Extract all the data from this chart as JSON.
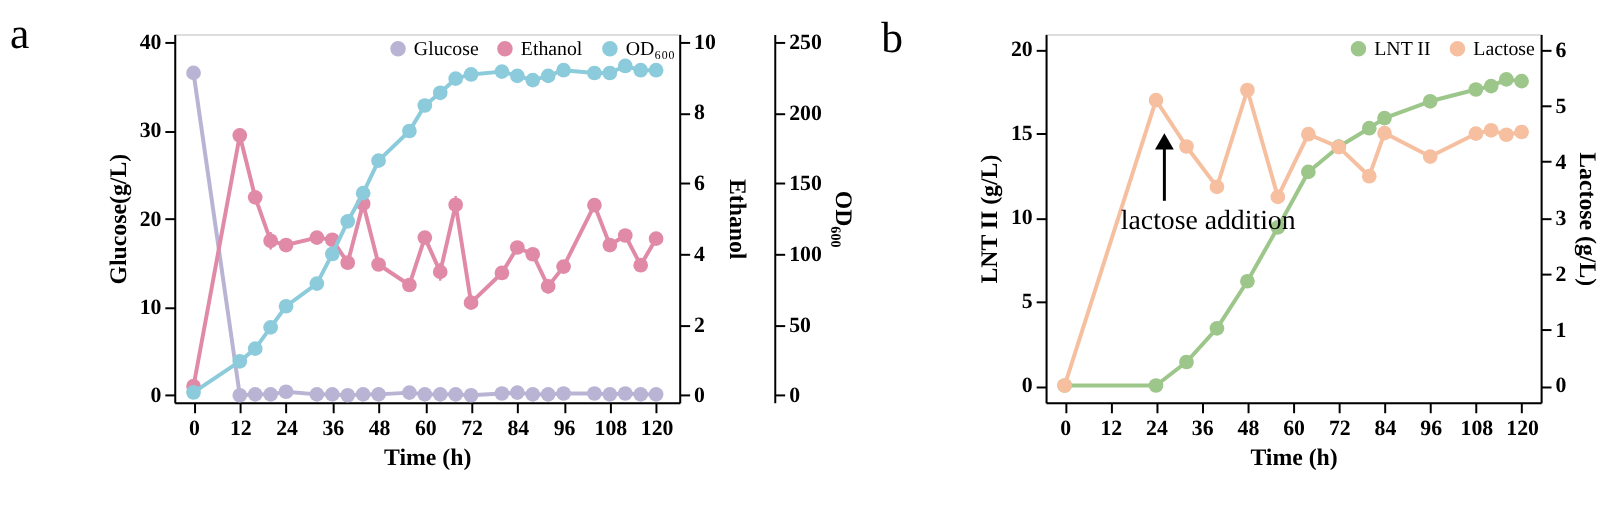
{
  "chart_data": [
    {
      "type": "line",
      "title": "a",
      "xlabel": "Time (h)",
      "ylabel": "Glucose(g/L)",
      "y2label": "Ethanol",
      "y3label": "OD₆₀₀",
      "xlim": [
        -5,
        126
      ],
      "xticks": [
        0,
        12,
        24,
        36,
        48,
        60,
        72,
        84,
        96,
        108,
        120
      ],
      "ylim": [
        -0.8,
        40.9
      ],
      "yticks": [
        0,
        10,
        20,
        30,
        40
      ],
      "y2lim": [
        -0.2,
        10.22
      ],
      "y2ticks": [
        0,
        2,
        4,
        6,
        8,
        10
      ],
      "y3lim": [
        -5,
        255.6
      ],
      "y3ticks": [
        0,
        50,
        100,
        150,
        200,
        250
      ],
      "legend": "top right",
      "marker": "circle",
      "line_style": "solid",
      "grid": false,
      "series": [
        {
          "name": "Glucose",
          "color": "#b9b3d4",
          "x": [
            0,
            12,
            16,
            20,
            24,
            32,
            36,
            40,
            44,
            48,
            56,
            60,
            64,
            68,
            72,
            80,
            84,
            88,
            92,
            96,
            104,
            108,
            112,
            116,
            120
          ],
          "values": [
            36.5,
            0,
            0.1,
            0.1,
            0.4,
            0.1,
            0.1,
            0,
            0.1,
            0.1,
            0.3,
            0.1,
            0.1,
            0.1,
            0,
            0.2,
            0.3,
            0.1,
            0.1,
            0.2,
            0.2,
            0.1,
            0.2,
            0.1,
            0.1
          ]
        },
        {
          "name": "Ethanol",
          "color": "#e08aa8",
          "axis": "y2",
          "x": [
            0,
            12,
            16,
            20,
            24,
            32,
            36,
            40,
            44,
            48,
            56,
            60,
            64,
            68,
            72,
            80,
            84,
            88,
            92,
            96,
            104,
            108,
            112,
            116,
            120
          ],
          "values": [
            0.26,
            7.35,
            5.6,
            4.37,
            4.25,
            4.46,
            4.4,
            3.75,
            5.42,
            3.7,
            3.12,
            4.46,
            3.49,
            5.39,
            2.62,
            3.46,
            4.18,
            3.99,
            3.08,
            3.64,
            5.38,
            4.25,
            4.52,
            3.68,
            4.43
          ],
          "errors": [
            null,
            0.2,
            null,
            0.25,
            null,
            null,
            null,
            null,
            null,
            null,
            null,
            null,
            0.25,
            0.25,
            null,
            null,
            null,
            null,
            0.2,
            null,
            null,
            null,
            null,
            null,
            0.15
          ]
        },
        {
          "name": "OD₆₀₀",
          "color": "#8ccbdb",
          "axis": "y3",
          "x": [
            0,
            12,
            16,
            20,
            24,
            32,
            36,
            40,
            44,
            48,
            56,
            60,
            64,
            68,
            72,
            80,
            84,
            88,
            92,
            96,
            104,
            108,
            112,
            116,
            120
          ],
          "values": [
            2,
            24,
            33,
            48,
            63,
            79,
            100,
            123,
            143,
            166,
            187,
            205,
            214,
            224,
            227,
            229,
            226,
            223,
            226,
            230,
            228,
            228,
            233,
            230,
            230
          ]
        }
      ]
    },
    {
      "type": "line",
      "title": "b",
      "xlabel": "Time (h)",
      "ylabel": "LNT II (g/L)",
      "y2label": "Lactose (g/L)",
      "xlim": [
        -5,
        125
      ],
      "xticks": [
        0,
        12,
        24,
        36,
        48,
        60,
        72,
        84,
        96,
        108,
        120
      ],
      "ylim": [
        -1,
        20.9
      ],
      "yticks": [
        0,
        5,
        10,
        15,
        20
      ],
      "y2lim": [
        -0.3,
        6.28
      ],
      "y2ticks": [
        0,
        1,
        2,
        3,
        4,
        5,
        6
      ],
      "legend": "top right",
      "marker": "circle",
      "line_style": "solid",
      "grid": false,
      "annotations": [
        "lactose addition"
      ],
      "series": [
        {
          "name": "LNT II",
          "color": "#9dc68a",
          "x": [
            0,
            24,
            32,
            40,
            48,
            56,
            64,
            72,
            80,
            84,
            96,
            108,
            112,
            116,
            120
          ],
          "values": [
            0,
            0,
            1.4,
            3.4,
            6.2,
            9.4,
            12.7,
            14.2,
            15.3,
            15.9,
            16.9,
            17.6,
            17.8,
            18.2,
            18.1
          ]
        },
        {
          "name": "Lactose",
          "color": "#f6bfa0",
          "axis": "y2",
          "x": [
            0,
            24,
            32,
            40,
            48,
            56,
            64,
            72,
            80,
            84,
            96,
            108,
            112,
            116,
            120
          ],
          "values": [
            0,
            5.1,
            4.27,
            3.55,
            5.28,
            3.37,
            4.49,
            4.26,
            3.74,
            4.51,
            4.09,
            4.5,
            4.56,
            4.48,
            4.53
          ]
        }
      ]
    }
  ]
}
